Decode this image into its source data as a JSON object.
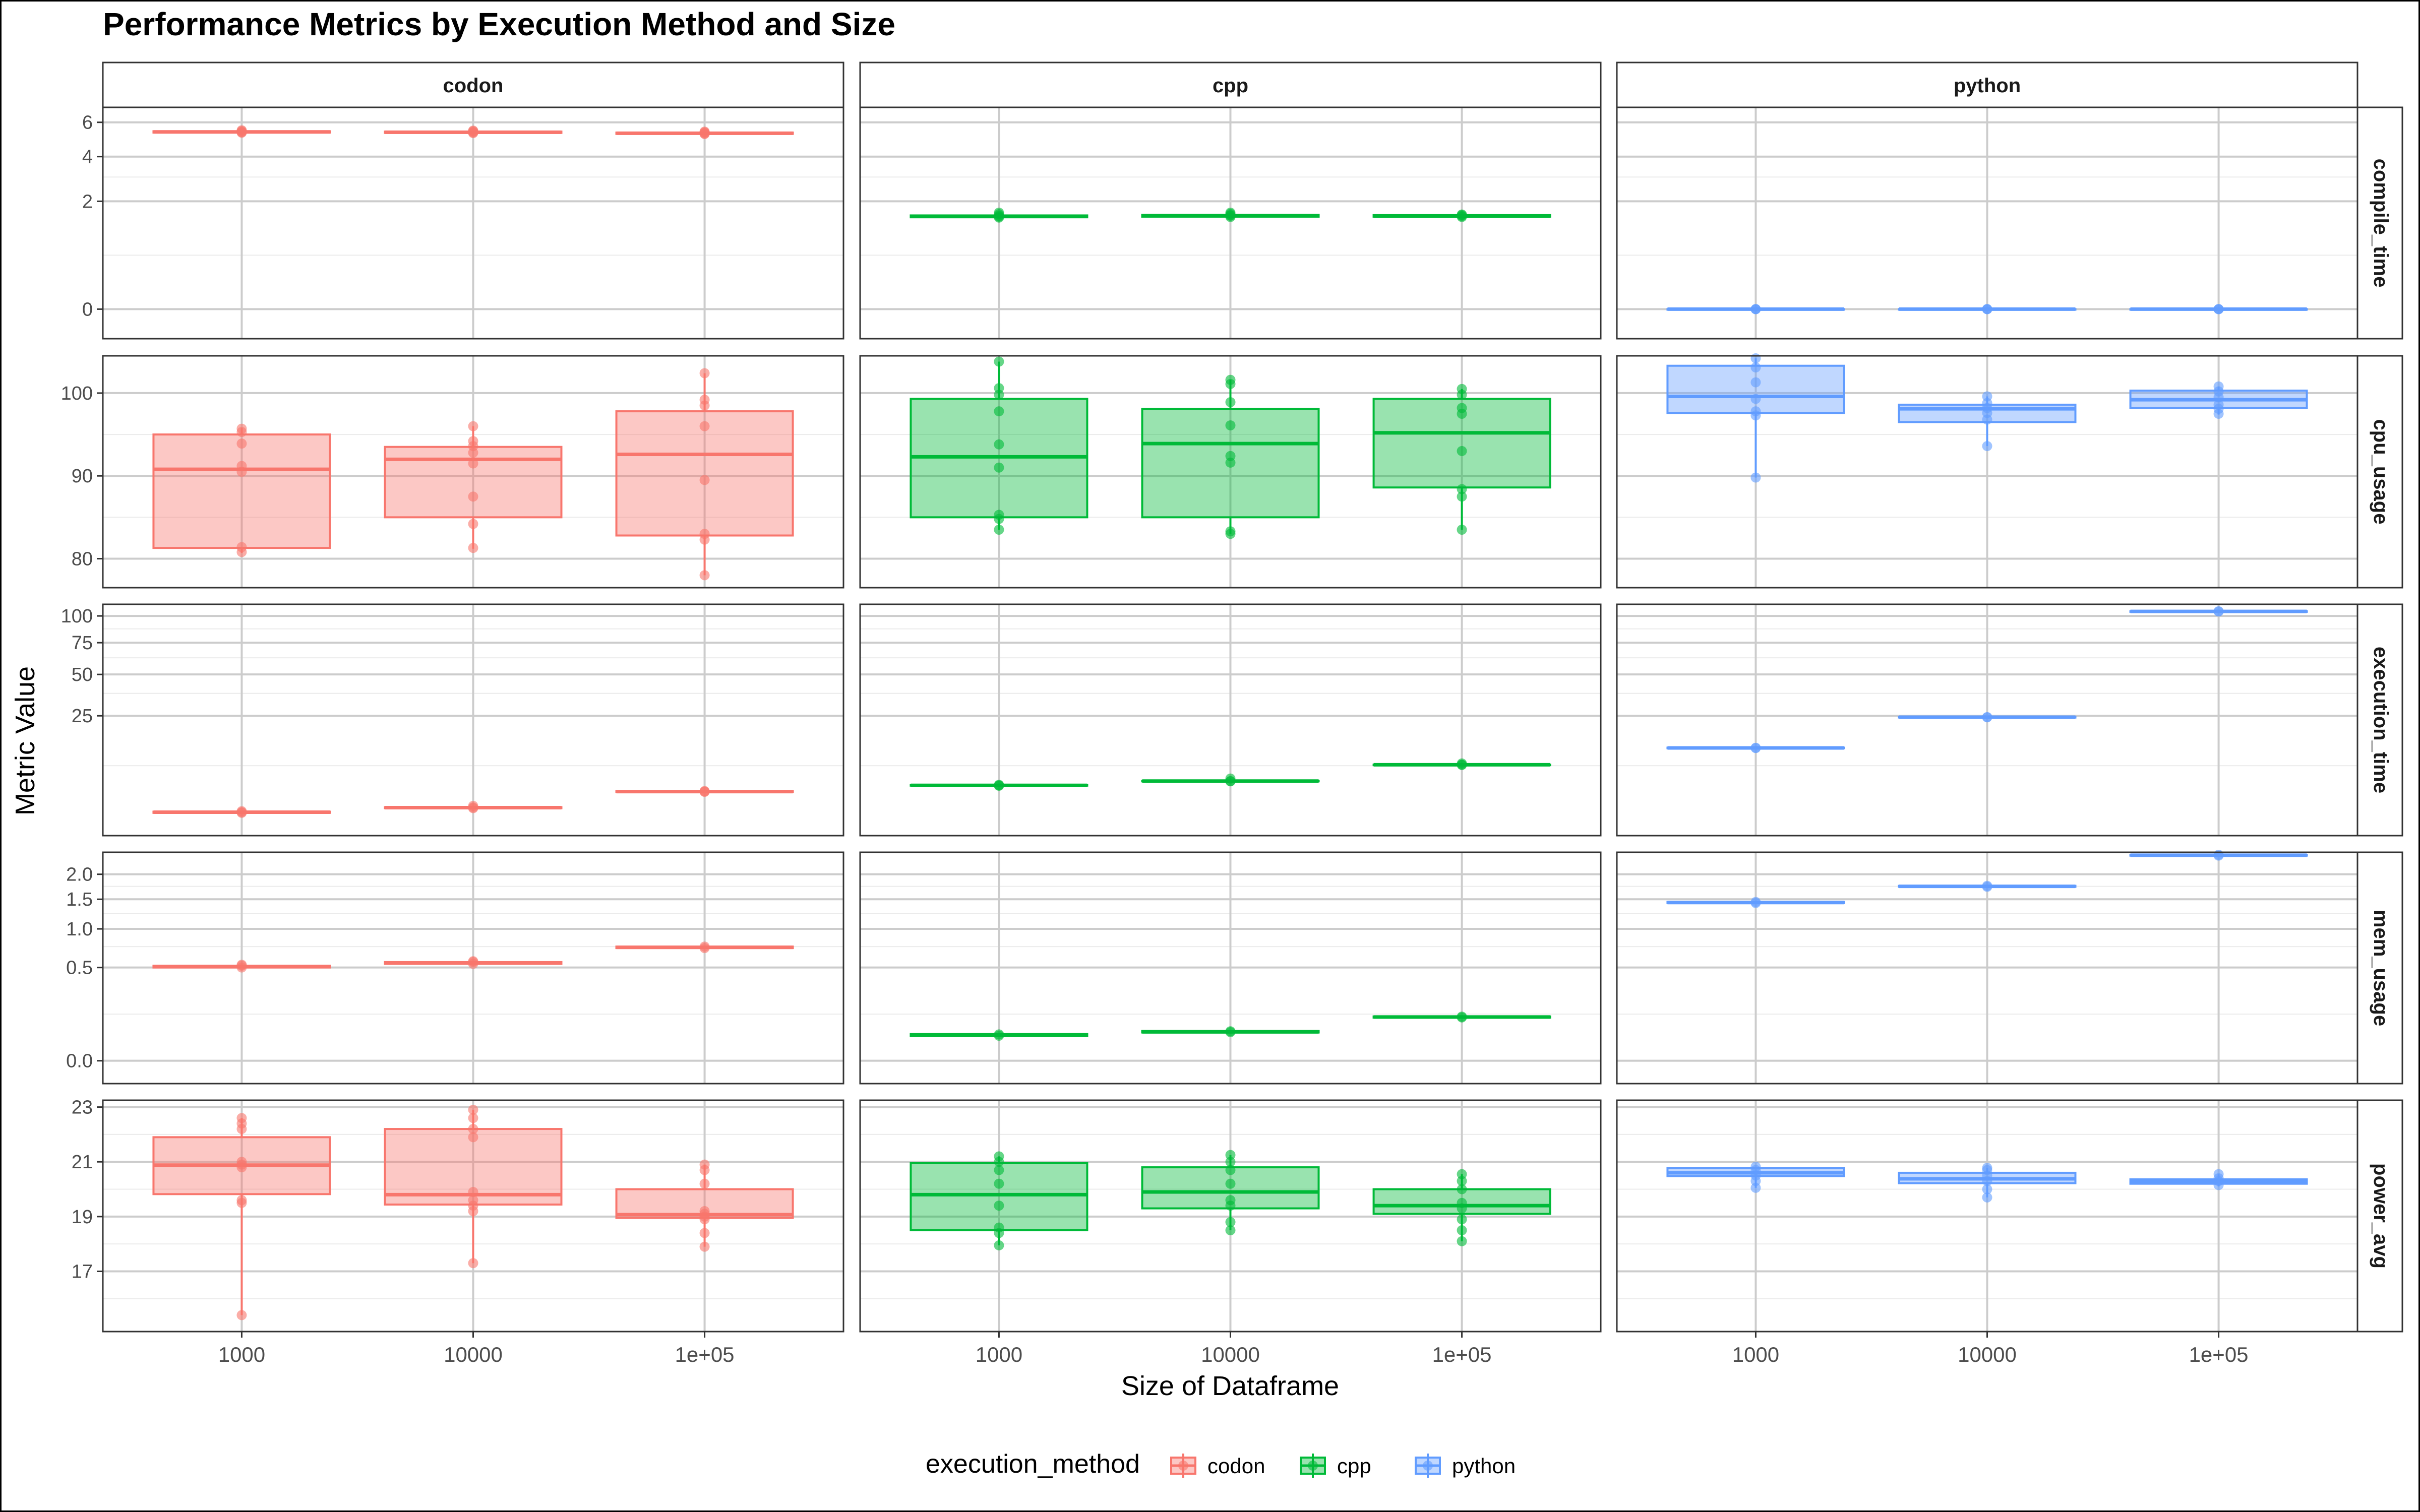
{
  "chart_data": {
    "type": "box",
    "title": "Performance Metrics by Execution Method and Size",
    "xlabel": "Size of Dataframe",
    "ylabel": "Metric Value",
    "categories": [
      "1000",
      "10000",
      "1e+05"
    ],
    "facet_columns": [
      "codon",
      "cpp",
      "python"
    ],
    "facet_rows": [
      "compile_time",
      "cpu_usage",
      "execution_time",
      "mem_usage",
      "power_avg"
    ],
    "colors": {
      "codon": "#F8766D",
      "cpp": "#00BA38",
      "python": "#619CFF"
    },
    "legend": {
      "title": "execution_method",
      "position": "bottom",
      "entries": [
        "codon",
        "cpp",
        "python"
      ]
    },
    "rows": [
      {
        "metric": "compile_time",
        "scale": "sqrt",
        "ylim": [
          -0.15,
          7.0
        ],
        "yticks": [
          0,
          2,
          4,
          6
        ],
        "ytick_labels": [
          "0",
          "2",
          "4",
          "6"
        ],
        "minor_ticks": [
          0.5,
          3
        ],
        "cells": {
          "codon": [
            {
              "q1": 5.36,
              "median": 5.4,
              "q3": 5.44,
              "min": 5.32,
              "max": 5.5,
              "points": [
                5.35,
                5.4,
                5.46,
                5.5,
                5.38
              ]
            },
            {
              "q1": 5.34,
              "median": 5.38,
              "q3": 5.42,
              "min": 5.3,
              "max": 5.48,
              "points": [
                5.33,
                5.4,
                5.45,
                5.48,
                5.36
              ]
            },
            {
              "q1": 5.28,
              "median": 5.32,
              "q3": 5.36,
              "min": 5.24,
              "max": 5.42,
              "points": [
                5.27,
                5.34,
                5.38,
                5.42,
                5.3
              ]
            }
          ],
          "cpp": [
            {
              "q1": 1.45,
              "median": 1.48,
              "q3": 1.51,
              "min": 1.42,
              "max": 1.6,
              "points": [
                1.44,
                1.47,
                1.5,
                1.55,
                1.6
              ]
            },
            {
              "q1": 1.47,
              "median": 1.5,
              "q3": 1.53,
              "min": 1.44,
              "max": 1.6,
              "points": [
                1.46,
                1.5,
                1.52,
                1.56,
                1.6
              ]
            },
            {
              "q1": 1.47,
              "median": 1.49,
              "q3": 1.52,
              "min": 1.45,
              "max": 1.56,
              "points": [
                1.46,
                1.49,
                1.52,
                1.54
              ]
            }
          ],
          "python": [
            {
              "q1": 0,
              "median": 0,
              "q3": 0,
              "min": 0,
              "max": 0,
              "points": [
                0,
                0,
                0
              ]
            },
            {
              "q1": 0,
              "median": 0,
              "q3": 0,
              "min": 0,
              "max": 0,
              "points": [
                0,
                0,
                0
              ]
            },
            {
              "q1": 0,
              "median": 0,
              "q3": 0,
              "min": 0,
              "max": 0,
              "points": [
                0,
                0,
                0
              ]
            }
          ]
        }
      },
      {
        "metric": "cpu_usage",
        "scale": "linear",
        "ylim": [
          76.5,
          104.5
        ],
        "yticks": [
          80,
          90,
          100
        ],
        "ytick_labels": [
          "80",
          "90",
          "100"
        ],
        "minor_ticks": [
          85,
          95
        ],
        "cells": {
          "codon": [
            {
              "q1": 81.3,
              "median": 90.8,
              "q3": 95.0,
              "min": 80.7,
              "max": 95.8,
              "points": [
                80.8,
                81.4,
                90.5,
                91.2,
                93.9,
                95.3,
                95.7
              ]
            },
            {
              "q1": 85.0,
              "median": 92.0,
              "q3": 93.5,
              "min": 81.2,
              "max": 96.0,
              "points": [
                81.3,
                84.2,
                87.5,
                91.5,
                92.8,
                93.6,
                94.2,
                96.0
              ]
            },
            {
              "q1": 82.8,
              "median": 92.6,
              "q3": 97.8,
              "min": 78.0,
              "max": 102.4,
              "points": [
                78.0,
                82.3,
                83.0,
                89.5,
                96.0,
                98.5,
                99.2,
                102.4
              ]
            }
          ],
          "cpp": [
            {
              "q1": 85.0,
              "median": 92.3,
              "q3": 99.3,
              "min": 83.5,
              "max": 103.8,
              "points": [
                83.5,
                84.8,
                85.3,
                91.0,
                93.8,
                97.8,
                99.8,
                100.6,
                103.8
              ]
            },
            {
              "q1": 85.0,
              "median": 93.9,
              "q3": 98.1,
              "min": 83.0,
              "max": 101.6,
              "points": [
                83.0,
                83.3,
                91.6,
                92.4,
                96.1,
                98.9,
                101.1,
                101.6
              ]
            },
            {
              "q1": 88.6,
              "median": 95.2,
              "q3": 99.3,
              "min": 83.5,
              "max": 100.5,
              "points": [
                83.5,
                87.5,
                88.4,
                93.0,
                97.5,
                98.2,
                99.8,
                100.5
              ]
            }
          ],
          "python": [
            {
              "q1": 97.6,
              "median": 99.6,
              "q3": 103.3,
              "min": 89.8,
              "max": 104.2,
              "points": [
                89.8,
                97.3,
                97.8,
                99.3,
                101.3,
                103.1,
                104.2
              ]
            },
            {
              "q1": 96.5,
              "median": 98.1,
              "q3": 98.6,
              "min": 93.6,
              "max": 99.6,
              "points": [
                93.6,
                96.8,
                97.6,
                98.2,
                98.8,
                99.6
              ]
            },
            {
              "q1": 98.2,
              "median": 99.2,
              "q3": 100.3,
              "min": 97.4,
              "max": 100.8,
              "points": [
                97.5,
                98.1,
                98.6,
                99.5,
                100.2,
                100.8
              ]
            }
          ]
        }
      },
      {
        "metric": "execution_time",
        "scale": "sqrt",
        "ylim": [
          -1.0,
          112.0
        ],
        "yticks": [
          25,
          50,
          75,
          100
        ],
        "ytick_labels": [
          "25",
          "50",
          "75",
          "100"
        ],
        "minor_ticks": [
          6.25,
          37.5,
          62.5,
          87.5
        ],
        "cells": {
          "codon": [
            {
              "q1": 0.02,
              "median": 0.03,
              "q3": 0.04,
              "min": 0.01,
              "max": 0.06,
              "points": [
                0.02,
                0.03,
                0.05
              ]
            },
            {
              "q1": 0.14,
              "median": 0.16,
              "q3": 0.18,
              "min": 0.12,
              "max": 0.25,
              "points": [
                0.14,
                0.17,
                0.24
              ]
            },
            {
              "q1": 1.4,
              "median": 1.45,
              "q3": 1.5,
              "min": 1.36,
              "max": 1.56,
              "points": [
                1.42,
                1.46,
                1.52
              ]
            }
          ],
          "cpp": [
            {
              "q1": 2.26,
              "median": 2.3,
              "q3": 2.34,
              "min": 2.2,
              "max": 2.4,
              "points": [
                2.24,
                2.3,
                2.38
              ]
            },
            {
              "q1": 2.96,
              "median": 3.0,
              "q3": 3.04,
              "min": 2.9,
              "max": 3.5,
              "points": [
                2.95,
                3.0,
                3.45
              ]
            },
            {
              "q1": 6.48,
              "median": 6.5,
              "q3": 6.52,
              "min": 6.44,
              "max": 6.85,
              "points": [
                6.46,
                6.5,
                6.83
              ]
            }
          ],
          "python": [
            {
              "q1": 11.4,
              "median": 11.5,
              "q3": 11.6,
              "min": 11.3,
              "max": 11.7,
              "points": [
                11.45,
                11.55
              ]
            },
            {
              "q1": 24.2,
              "median": 24.3,
              "q3": 24.4,
              "min": 24.1,
              "max": 24.5,
              "points": [
                24.25,
                24.35
              ]
            },
            {
              "q1": 104.5,
              "median": 104.6,
              "q3": 104.7,
              "min": 104.4,
              "max": 104.8,
              "points": [
                104.5,
                104.7
              ]
            }
          ]
        }
      },
      {
        "metric": "mem_usage",
        "scale": "sqrt",
        "ylim": [
          -0.03,
          2.5
        ],
        "yticks": [
          0,
          0.5,
          1,
          1.5,
          2
        ],
        "ytick_labels": [
          "0.0",
          "0.5",
          "1.0",
          "1.5",
          "2.0"
        ],
        "minor_ticks": [
          0.125,
          0.75,
          1.25,
          1.75
        ],
        "cells": {
          "codon": [
            {
              "q1": 0.5,
              "median": 0.51,
              "q3": 0.52,
              "min": 0.49,
              "max": 0.53,
              "points": [
                0.5,
                0.52,
                0.53
              ]
            },
            {
              "q1": 0.54,
              "median": 0.55,
              "q3": 0.56,
              "min": 0.53,
              "max": 0.57,
              "points": [
                0.54,
                0.56,
                0.57
              ]
            },
            {
              "q1": 0.73,
              "median": 0.74,
              "q3": 0.75,
              "min": 0.72,
              "max": 0.76,
              "points": [
                0.73,
                0.75
              ]
            }
          ],
          "cpp": [
            {
              "q1": 0.035,
              "median": 0.038,
              "q3": 0.041,
              "min": 0.033,
              "max": 0.045,
              "points": [
                0.036,
                0.04
              ]
            },
            {
              "q1": 0.046,
              "median": 0.048,
              "q3": 0.051,
              "min": 0.044,
              "max": 0.055,
              "points": [
                0.047,
                0.05
              ]
            },
            {
              "q1": 0.107,
              "median": 0.11,
              "q3": 0.113,
              "min": 0.104,
              "max": 0.118,
              "points": [
                0.108,
                0.112
              ]
            }
          ],
          "python": [
            {
              "q1": 1.43,
              "median": 1.44,
              "q3": 1.45,
              "min": 1.42,
              "max": 1.46,
              "points": [
                1.43,
                1.45
              ]
            },
            {
              "q1": 1.74,
              "median": 1.75,
              "q3": 1.76,
              "min": 1.73,
              "max": 1.77,
              "points": [
                1.74,
                1.76
              ]
            },
            {
              "q1": 2.42,
              "median": 2.43,
              "q3": 2.44,
              "min": 2.41,
              "max": 2.45,
              "points": [
                2.42,
                2.44
              ]
            }
          ]
        }
      },
      {
        "metric": "power_avg",
        "scale": "linear",
        "ylim": [
          14.8,
          23.25
        ],
        "yticks": [
          17,
          19,
          21,
          23
        ],
        "ytick_labels": [
          "17",
          "19",
          "21",
          "23"
        ],
        "minor_ticks": [
          16,
          18,
          20,
          22
        ],
        "cells": {
          "codon": [
            {
              "q1": 19.82,
              "median": 20.88,
              "q3": 21.9,
              "min": 15.4,
              "max": 22.6,
              "points": [
                15.4,
                19.5,
                19.6,
                20.8,
                20.9,
                21.0,
                22.2,
                22.4,
                22.6
              ]
            },
            {
              "q1": 19.44,
              "median": 19.8,
              "q3": 22.2,
              "min": 17.3,
              "max": 22.9,
              "points": [
                17.3,
                19.2,
                19.4,
                19.6,
                19.9,
                21.9,
                22.2,
                22.6,
                22.9
              ]
            },
            {
              "q1": 18.95,
              "median": 19.07,
              "q3": 20.0,
              "min": 17.9,
              "max": 20.9,
              "points": [
                17.9,
                18.4,
                18.9,
                19.0,
                19.1,
                19.2,
                20.2,
                20.7,
                20.9
              ]
            }
          ],
          "cpp": [
            {
              "q1": 18.5,
              "median": 19.8,
              "q3": 20.95,
              "min": 17.95,
              "max": 21.2,
              "points": [
                17.95,
                18.4,
                18.6,
                19.4,
                20.2,
                20.7,
                21.0,
                21.2
              ]
            },
            {
              "q1": 19.3,
              "median": 19.9,
              "q3": 20.8,
              "min": 18.5,
              "max": 21.25,
              "points": [
                18.5,
                18.8,
                19.4,
                19.6,
                20.2,
                20.7,
                21.0,
                21.25
              ]
            },
            {
              "q1": 19.1,
              "median": 19.4,
              "q3": 20.0,
              "min": 18.1,
              "max": 20.55,
              "points": [
                18.1,
                18.5,
                18.9,
                19.3,
                19.5,
                20.0,
                20.3,
                20.55
              ]
            }
          ],
          "python": [
            {
              "q1": 20.48,
              "median": 20.6,
              "q3": 20.78,
              "min": 20.05,
              "max": 20.82,
              "points": [
                20.05,
                20.3,
                20.5,
                20.7,
                20.82
              ]
            },
            {
              "q1": 20.22,
              "median": 20.38,
              "q3": 20.6,
              "min": 19.7,
              "max": 20.78,
              "points": [
                19.7,
                20.0,
                20.3,
                20.5,
                20.7,
                20.78
              ]
            },
            {
              "q1": 20.2,
              "median": 20.28,
              "q3": 20.36,
              "min": 20.1,
              "max": 20.55,
              "points": [
                20.15,
                20.3,
                20.4,
                20.55
              ]
            }
          ]
        }
      }
    ]
  }
}
